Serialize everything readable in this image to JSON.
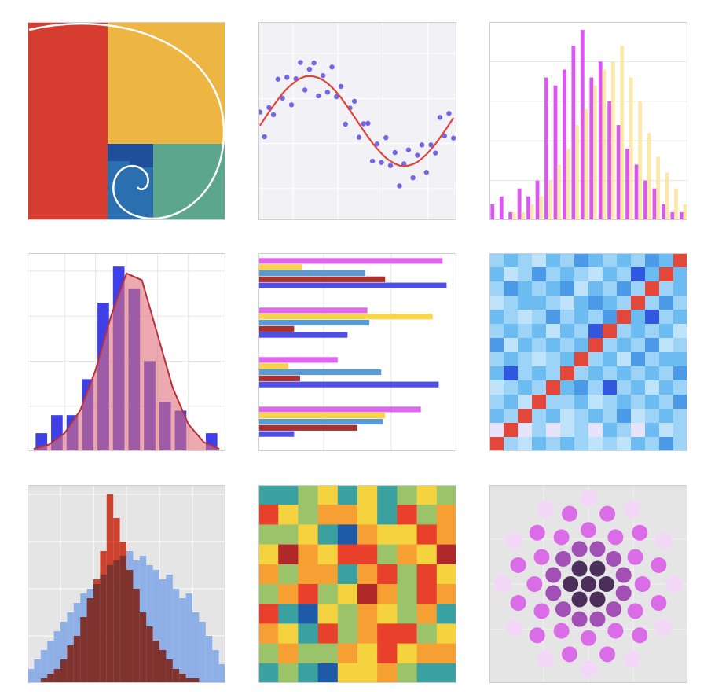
{
  "chart_data": [
    {
      "type": "golden-spiral",
      "colors": [
        "#d63c2f",
        "#edb541",
        "#5ba68c",
        "#2a6fb0",
        "#1f4e9a"
      ],
      "line_color": "#ffffff"
    },
    {
      "type": "scatter",
      "background": "#f2f2f6",
      "grid": true,
      "grid_color": "#ffffff",
      "xlim": [
        -0.15,
        6.45
      ],
      "ylim": [
        -2.2,
        2.2
      ],
      "xticks": [
        1,
        2.5,
        4,
        5.5
      ],
      "yticks": [
        -1.5,
        -0.5,
        0.5,
        1.5
      ],
      "x": [
        -0.1,
        0.05,
        0.2,
        0.35,
        0.5,
        0.65,
        0.8,
        0.95,
        1.1,
        1.25,
        1.4,
        1.55,
        1.7,
        1.85,
        2.0,
        2.15,
        2.3,
        2.45,
        2.6,
        2.75,
        2.9,
        3.05,
        3.2,
        3.35,
        3.5,
        3.65,
        3.8,
        3.95,
        4.1,
        4.25,
        4.4,
        4.55,
        4.7,
        4.85,
        5.0,
        5.15,
        5.3,
        5.45,
        5.6,
        5.75,
        5.9,
        6.05,
        6.2,
        6.35
      ],
      "series": [
        {
          "mark": "point",
          "color": "#5a4fe0",
          "values": [
            0.2,
            -0.35,
            0.3,
            0.14,
            0.93,
            0.51,
            0.97,
            0.36,
            0.94,
            1.3,
            0.69,
            1.15,
            1.29,
            0.56,
            1.01,
            0.64,
            1.2,
            0.54,
            0.77,
            -0.07,
            0.29,
            0.44,
            -0.36,
            -0.06,
            -0.05,
            -0.89,
            -0.51,
            -0.92,
            -0.37,
            -0.99,
            -0.7,
            -1.44,
            -0.95,
            -0.64,
            -1.26,
            -0.76,
            -0.53,
            -1.14,
            -0.53,
            -0.71,
            0.08,
            -0.33,
            0.17,
            -0.38
          ]
        },
        {
          "mark": "line",
          "color": "#e0443a",
          "values": [
            -0.1,
            0.05,
            0.2,
            0.34,
            0.48,
            0.61,
            0.72,
            0.81,
            0.89,
            0.95,
            0.99,
            1.0,
            0.99,
            0.96,
            0.91,
            0.84,
            0.75,
            0.64,
            0.52,
            0.38,
            0.24,
            0.09,
            -0.06,
            -0.21,
            -0.35,
            -0.49,
            -0.61,
            -0.72,
            -0.82,
            -0.89,
            -0.95,
            -0.99,
            -1.0,
            -0.99,
            -0.96,
            -0.91,
            -0.83,
            -0.74,
            -0.63,
            -0.51,
            -0.37,
            -0.23,
            -0.08,
            0.07
          ]
        }
      ]
    },
    {
      "type": "bar",
      "background": "#ffffff",
      "grid": true,
      "grid_color": "#e6e6e6",
      "ylim": [
        0,
        25
      ],
      "yticks": [
        5,
        10,
        15,
        20
      ],
      "categories": [
        null,
        null,
        null,
        null,
        null,
        null,
        null,
        null,
        null,
        null,
        null,
        null,
        null,
        null,
        null,
        null,
        null,
        null,
        null,
        null,
        null,
        null
      ],
      "series": [
        {
          "color": "#d94ef0",
          "values": [
            2,
            3,
            1,
            4,
            3,
            5,
            18,
            17,
            19,
            22,
            24,
            18,
            20,
            15,
            12,
            9,
            7,
            5,
            4,
            2,
            1,
            1
          ]
        },
        {
          "color": "#fbe08c",
          "values": [
            0,
            0,
            1,
            1,
            2,
            3,
            5,
            7,
            9,
            12,
            14,
            17,
            19,
            20,
            22,
            18,
            15,
            11,
            8,
            6,
            4,
            2
          ]
        }
      ]
    },
    {
      "type": "histogram",
      "background": "#ffffff",
      "grid": true,
      "grid_color": "#e6e6e6",
      "xlim": [
        -3.2,
        3.2
      ],
      "ylim": [
        0,
        4.4
      ],
      "xticks": [
        -2,
        -1,
        0,
        1,
        2
      ],
      "yticks": [
        1,
        2,
        3,
        4
      ],
      "bins": [
        -3,
        -2.5,
        -2,
        -1.5,
        -1,
        -0.5,
        0,
        0.5,
        1,
        1.5,
        2,
        2.5,
        3
      ],
      "series": [
        {
          "color": "#3f3fe8",
          "values": [
            0.4,
            0.8,
            0.8,
            1.6,
            3.3,
            4.1,
            3.6,
            2.0,
            1.1,
            0.9,
            0,
            0.4
          ]
        }
      ],
      "curve": {
        "color": "#b8303a",
        "fill": "#e0707a",
        "x": [
          -3,
          -2.5,
          -2,
          -1.5,
          -1,
          -0.5,
          0,
          0.5,
          1,
          1.5,
          2,
          2.5,
          3
        ],
        "values": [
          0.05,
          0.15,
          0.4,
          0.9,
          1.8,
          3.0,
          3.95,
          3.8,
          2.6,
          1.4,
          0.6,
          0.2,
          0.05
        ]
      }
    },
    {
      "type": "barh",
      "background": "#ffffff",
      "grid": true,
      "grid_color": "#e6e6e6",
      "xlim": [
        0,
        1
      ],
      "xticks": [
        0.33,
        0.67
      ],
      "categories": [
        null,
        null,
        null,
        null
      ],
      "series": [
        {
          "color": "#e066f0",
          "values": [
            0.93,
            0.55,
            0.4,
            0.82
          ]
        },
        {
          "color": "#f7d54a",
          "values": [
            0.22,
            0.88,
            0.15,
            0.64
          ]
        },
        {
          "color": "#5b9bd5",
          "values": [
            0.54,
            0.56,
            0.62,
            0.63
          ]
        },
        {
          "color": "#a8302f",
          "values": [
            0.64,
            0.18,
            0.21,
            0.5
          ]
        },
        {
          "color": "#4f4fe6",
          "values": [
            0.95,
            0.45,
            0.91,
            0.18
          ]
        }
      ]
    },
    {
      "type": "heatmap",
      "colors": [
        "#e6e3fa",
        "#bfe3fb",
        "#9dd3f7",
        "#6cbcf2",
        "#4a9ae8",
        "#2f57e0",
        "#e2473a"
      ],
      "z": [
        [
          2,
          3,
          2,
          1,
          3,
          2,
          4,
          3,
          2,
          3,
          2,
          4,
          3,
          6
        ],
        [
          3,
          1,
          2,
          4,
          2,
          3,
          2,
          1,
          3,
          2,
          5,
          3,
          6,
          3
        ],
        [
          2,
          4,
          3,
          2,
          3,
          4,
          1,
          3,
          2,
          4,
          2,
          6,
          2,
          3
        ],
        [
          1,
          2,
          3,
          3,
          2,
          1,
          3,
          4,
          3,
          2,
          6,
          2,
          4,
          2
        ],
        [
          3,
          2,
          1,
          2,
          4,
          2,
          3,
          2,
          4,
          6,
          3,
          5,
          2,
          3
        ],
        [
          2,
          3,
          2,
          3,
          1,
          3,
          2,
          5,
          6,
          2,
          3,
          2,
          3,
          1
        ],
        [
          4,
          1,
          3,
          2,
          3,
          2,
          3,
          6,
          2,
          3,
          2,
          4,
          1,
          2
        ],
        [
          2,
          3,
          2,
          1,
          2,
          3,
          6,
          2,
          3,
          1,
          4,
          2,
          3,
          3
        ],
        [
          3,
          5,
          2,
          3,
          2,
          6,
          2,
          3,
          2,
          3,
          2,
          3,
          2,
          4
        ],
        [
          1,
          2,
          3,
          2,
          6,
          3,
          4,
          2,
          5,
          2,
          3,
          1,
          3,
          2
        ],
        [
          2,
          3,
          1,
          6,
          2,
          2,
          3,
          1,
          2,
          3,
          2,
          3,
          2,
          4
        ],
        [
          3,
          2,
          6,
          2,
          3,
          1,
          2,
          3,
          2,
          4,
          1,
          2,
          3,
          2
        ],
        [
          0,
          6,
          0,
          2,
          0,
          1,
          2,
          0,
          3,
          2,
          0,
          3,
          1,
          2
        ],
        [
          6,
          2,
          1,
          3,
          2,
          3,
          2,
          1,
          2,
          1,
          3,
          2,
          4,
          2
        ]
      ]
    },
    {
      "type": "histogram",
      "background": "#e5e5e5",
      "grid": true,
      "grid_color": "#ffffff",
      "xlim": [
        0,
        30
      ],
      "ylim": [
        0,
        42
      ],
      "xticks": [
        5,
        10,
        15,
        20,
        25
      ],
      "yticks": [
        10,
        20,
        30,
        40
      ],
      "bins": [
        0,
        1,
        2,
        3,
        4,
        5,
        6,
        7,
        8,
        9,
        10,
        11,
        12,
        13,
        14,
        15,
        16,
        17,
        18,
        19,
        20,
        21,
        22,
        23,
        24,
        25,
        26,
        27,
        28,
        29,
        30
      ],
      "series": [
        {
          "color": "#8fb0e6",
          "values": [
            3,
            5,
            7,
            9,
            11,
            13,
            15,
            17,
            19,
            20,
            21,
            23,
            25,
            26,
            27,
            28,
            26,
            27,
            25,
            24,
            22,
            23,
            20,
            18,
            19,
            15,
            13,
            10,
            7,
            4
          ]
        },
        {
          "color": "#e24a33",
          "blend": "multiply",
          "values": [
            0,
            0,
            1,
            2,
            3,
            5,
            8,
            10,
            14,
            18,
            22,
            28,
            40,
            35,
            30,
            24,
            20,
            15,
            12,
            9,
            7,
            5,
            3,
            2,
            1,
            1,
            0,
            0,
            0,
            0
          ]
        }
      ]
    },
    {
      "type": "heatmap",
      "colors": [
        "#1f5aa8",
        "#3aa0a0",
        "#9bc46a",
        "#f5d33f",
        "#f6a033",
        "#e8402a",
        "#b0282a"
      ],
      "z": [
        [
          1,
          1,
          2,
          3,
          1,
          3,
          1,
          2,
          3,
          2
        ],
        [
          5,
          3,
          2,
          4,
          4,
          3,
          1,
          5,
          2,
          4
        ],
        [
          2,
          2,
          3,
          1,
          0,
          4,
          3,
          3,
          5,
          4
        ],
        [
          3,
          6,
          4,
          3,
          5,
          5,
          2,
          4,
          3,
          6
        ],
        [
          4,
          2,
          4,
          4,
          1,
          4,
          5,
          2,
          5,
          3
        ],
        [
          2,
          4,
          5,
          2,
          3,
          6,
          4,
          2,
          5,
          4
        ],
        [
          5,
          1,
          0,
          3,
          2,
          4,
          3,
          2,
          4,
          1
        ],
        [
          4,
          3,
          1,
          5,
          2,
          4,
          5,
          5,
          2,
          3
        ],
        [
          2,
          4,
          2,
          2,
          4,
          3,
          5,
          3,
          4,
          4
        ],
        [
          1,
          2,
          1,
          0,
          3,
          3,
          4,
          2,
          1,
          1
        ]
      ]
    },
    {
      "type": "scatter-radial",
      "background": "#e5e5e5",
      "grid": true,
      "grid_color": "#f2f2f2",
      "xlim": [
        -1.1,
        1.1
      ],
      "ylim": [
        -1.1,
        1.1
      ],
      "xticks": [
        -0.5,
        0,
        0.5
      ],
      "yticks": [
        -0.5,
        0,
        0.5
      ],
      "colors": [
        "#3a1a4a",
        "#9a3fb0",
        "#d95ee8",
        "#f3d5f8"
      ],
      "x": [
        0,
        0.2,
        0.1,
        -0.1,
        -0.2,
        -0.1,
        0.1,
        0.39,
        0.28,
        0.1,
        -0.1,
        -0.28,
        -0.39,
        -0.39,
        -0.28,
        -0.1,
        0.1,
        0.28,
        0.39,
        0.6,
        0.52,
        0.3,
        0,
        -0.3,
        -0.52,
        -0.6,
        -0.52,
        -0.3,
        0,
        0.3,
        0.52,
        0.78,
        0.57,
        0.21,
        -0.21,
        -0.57,
        -0.78,
        -0.78,
        -0.57,
        -0.21,
        0.21,
        0.57,
        0.78,
        0.95,
        0.83,
        0.48,
        0,
        -0.48,
        -0.83,
        -0.95,
        -0.83,
        -0.48,
        0,
        0.48,
        0.83
      ],
      "values": [
        0,
        0,
        0.17,
        0.17,
        0,
        -0.17,
        -0.17,
        0.1,
        0.28,
        0.39,
        0.39,
        0.28,
        0.1,
        -0.1,
        -0.28,
        -0.39,
        -0.39,
        -0.28,
        -0.1,
        0,
        0.3,
        0.52,
        0.6,
        0.52,
        0.3,
        0,
        -0.3,
        -0.52,
        -0.6,
        -0.52,
        -0.3,
        0.21,
        0.57,
        0.78,
        0.78,
        0.57,
        0.21,
        -0.21,
        -0.57,
        -0.78,
        -0.78,
        -0.57,
        -0.21,
        0,
        0.48,
        0.83,
        0.95,
        0.83,
        0.48,
        0,
        -0.48,
        -0.83,
        -0.95,
        -0.83,
        -0.48
      ]
    }
  ]
}
